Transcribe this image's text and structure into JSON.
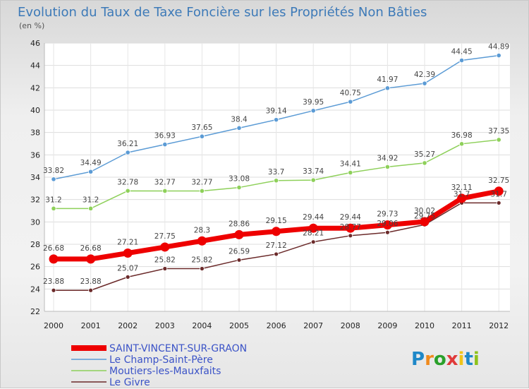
{
  "chart_data": {
    "type": "line",
    "title": "Evolution du Taux de Taxe Foncière sur les Propriétés Non Bâties",
    "subtitle": "(en %)",
    "x": [
      "2000",
      "2001",
      "2002",
      "2003",
      "2004",
      "2005",
      "2006",
      "2007",
      "2008",
      "2009",
      "2010",
      "2011",
      "2012"
    ],
    "ylim": [
      22,
      46
    ],
    "yticks": [
      "22",
      "24",
      "26",
      "28",
      "30",
      "32",
      "34",
      "36",
      "38",
      "40",
      "42",
      "44",
      "46"
    ],
    "grid": true,
    "legend_position": "bottom-left",
    "series": [
      {
        "name": "Le Champ-Saint-Père",
        "color": "#5b9bd5",
        "values": [
          33.82,
          34.49,
          36.21,
          36.93,
          37.65,
          38.4,
          39.14,
          39.95,
          40.75,
          41.97,
          42.39,
          44.45,
          44.89
        ],
        "labels": [
          "33.82",
          "34.49",
          "36.21",
          "36.93",
          "37.65",
          "38.4",
          "39.14",
          "39.95",
          "40.75",
          "41.97",
          "42.39",
          "44.45",
          "44.89"
        ]
      },
      {
        "name": "Moutiers-les-Mauxfaits",
        "color": "#8ed05a",
        "values": [
          31.2,
          31.2,
          32.78,
          32.77,
          32.77,
          33.08,
          33.7,
          33.74,
          34.41,
          34.92,
          35.27,
          36.98,
          37.35
        ],
        "labels": [
          "31.2",
          "31.2",
          "32.78",
          "32.77",
          "32.77",
          "33.08",
          "33.7",
          "33.74",
          "34.41",
          "34.92",
          "35.27",
          "36.98",
          "37.35"
        ]
      },
      {
        "name": "Le Givre",
        "color": "#6b2a2a",
        "values": [
          23.88,
          23.88,
          25.07,
          25.82,
          25.82,
          26.59,
          27.12,
          28.21,
          28.77,
          29.06,
          29.75,
          31.7,
          31.7
        ],
        "labels": [
          "23.88",
          "23.88",
          "25.07",
          "25.82",
          "25.82",
          "26.59",
          "27.12",
          "28.21",
          "28.77",
          "29.06",
          "29.75",
          "31.7",
          "31.7"
        ]
      },
      {
        "name": "SAINT-VINCENT-SUR-GRAON",
        "color": "#ee0000",
        "values": [
          26.68,
          26.68,
          27.21,
          27.75,
          28.3,
          28.86,
          29.15,
          29.44,
          29.44,
          29.73,
          30.02,
          32.11,
          32.75
        ],
        "labels": [
          "26.68",
          "26.68",
          "27.21",
          "27.75",
          "28.3",
          "28.86",
          "29.15",
          "29.44",
          "29.44",
          "29.73",
          "30.02",
          "32.11",
          "32.75"
        ]
      }
    ],
    "legend": [
      "SAINT-VINCENT-SUR-GRAON",
      "Le Champ-Saint-Père",
      "Moutiers-les-Mauxfaits",
      "Le Givre"
    ]
  },
  "logo": {
    "text": "Proxiti"
  }
}
